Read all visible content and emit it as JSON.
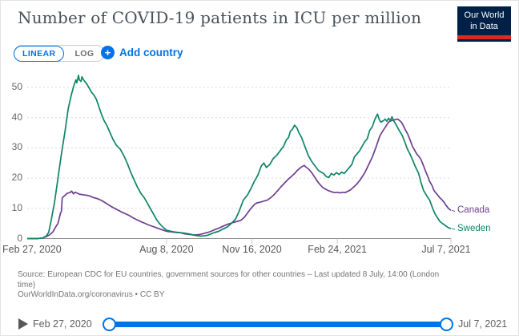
{
  "header": {
    "title": "Number of COVID-19 patients in ICU per million",
    "logo_line1": "Our World",
    "logo_line2": "in Data"
  },
  "controls": {
    "linear_label": "LINEAR",
    "log_label": "LOG",
    "plus_icon": "+",
    "add_country_label": "Add country"
  },
  "colors": {
    "accent_blue": "#0073e6",
    "logo_navy": "#002147",
    "logo_red": "#dc2a20",
    "sweden_green": "#0e8465",
    "canada_purple": "#6d3e91",
    "grid": "#dadada",
    "axis": "#8a8a8a"
  },
  "chart_data": {
    "type": "line",
    "title": "Number of COVID-19 patients in ICU per million",
    "x_axis": {
      "start_date": "2020-02-27",
      "end_date": "2021-07-07",
      "unit": "days_since_start",
      "ticks": [
        {
          "day": 0,
          "label": "Feb 27, 2020"
        },
        {
          "day": 163,
          "label": "Aug 8, 2020"
        },
        {
          "day": 263,
          "label": "Nov 16, 2020"
        },
        {
          "day": 363,
          "label": "Feb 24, 2021"
        },
        {
          "day": 496,
          "label": "Jul 7, 2021"
        }
      ]
    },
    "y_axis": {
      "ticks": [
        0,
        10,
        20,
        30,
        40,
        50
      ],
      "range": [
        0,
        55
      ],
      "gridlines": "dashed"
    },
    "legend_position": "right-of-line-end",
    "series": [
      {
        "name": "Canada",
        "color": "#6d3e91",
        "points": [
          [
            0,
            0
          ],
          [
            12,
            0
          ],
          [
            18,
            0.2
          ],
          [
            22,
            0.6
          ],
          [
            26,
            1.2
          ],
          [
            30,
            2.2
          ],
          [
            33,
            3.7
          ],
          [
            36,
            5
          ],
          [
            39,
            8.5
          ],
          [
            40,
            9
          ],
          [
            41,
            13.5
          ],
          [
            43,
            14
          ],
          [
            45,
            14.5
          ],
          [
            47,
            15
          ],
          [
            50,
            15.2
          ],
          [
            52,
            15.7
          ],
          [
            54,
            14.8
          ],
          [
            56,
            15.3
          ],
          [
            58,
            15.1
          ],
          [
            61,
            14.7
          ],
          [
            65,
            14.5
          ],
          [
            70,
            14.3
          ],
          [
            74,
            14
          ],
          [
            78,
            13.5
          ],
          [
            82,
            13.2
          ],
          [
            87,
            12.6
          ],
          [
            91,
            11.9
          ],
          [
            95,
            11.2
          ],
          [
            99,
            10.5
          ],
          [
            103,
            9.9
          ],
          [
            107,
            9.3
          ],
          [
            111,
            8.7
          ],
          [
            115,
            8.2
          ],
          [
            119,
            7.7
          ],
          [
            123,
            7
          ],
          [
            127,
            6.4
          ],
          [
            131,
            5.9
          ],
          [
            134,
            5.5
          ],
          [
            138,
            5
          ],
          [
            142,
            4.5
          ],
          [
            146,
            4.1
          ],
          [
            150,
            3.7
          ],
          [
            154,
            3.3
          ],
          [
            158,
            2.9
          ],
          [
            162,
            2.5
          ],
          [
            165,
            2.3
          ],
          [
            169,
            2.2
          ],
          [
            172,
            2.1
          ],
          [
            176,
            2
          ],
          [
            180,
            1.9
          ],
          [
            184,
            1.6
          ],
          [
            188,
            1.4
          ],
          [
            192,
            1.3
          ],
          [
            196,
            1.2
          ],
          [
            200,
            1.3
          ],
          [
            203,
            1.4
          ],
          [
            207,
            1.7
          ],
          [
            211,
            2
          ],
          [
            215,
            2.4
          ],
          [
            219,
            2.9
          ],
          [
            223,
            3.3
          ],
          [
            227,
            3.8
          ],
          [
            231,
            4.3
          ],
          [
            234,
            4.7
          ],
          [
            238,
            5
          ],
          [
            241,
            5.3
          ],
          [
            246,
            5.7
          ],
          [
            250,
            6
          ],
          [
            254,
            7
          ],
          [
            258,
            8.5
          ],
          [
            262,
            10
          ],
          [
            266,
            11.3
          ],
          [
            269,
            11.8
          ],
          [
            272,
            12
          ],
          [
            276,
            12.3
          ],
          [
            281,
            12.7
          ],
          [
            285,
            13.5
          ],
          [
            289,
            14.5
          ],
          [
            293,
            15.8
          ],
          [
            297,
            17.1
          ],
          [
            301,
            18.3
          ],
          [
            305,
            19.5
          ],
          [
            309,
            20.5
          ],
          [
            313,
            21.5
          ],
          [
            316,
            22.5
          ],
          [
            318,
            23
          ],
          [
            321,
            23.7
          ],
          [
            324,
            24.2
          ],
          [
            327,
            23.5
          ],
          [
            330,
            22.8
          ],
          [
            333,
            21.8
          ],
          [
            336,
            20.5
          ],
          [
            340,
            18.8
          ],
          [
            343,
            17.8
          ],
          [
            346,
            16.9
          ],
          [
            350,
            16.2
          ],
          [
            353,
            15.8
          ],
          [
            357,
            15.4
          ],
          [
            360,
            15.2
          ],
          [
            363,
            15.3
          ],
          [
            366,
            15.1
          ],
          [
            369,
            15.3
          ],
          [
            372,
            15.2
          ],
          [
            375,
            15.6
          ],
          [
            378,
            16
          ],
          [
            382,
            17
          ],
          [
            386,
            18.1
          ],
          [
            390,
            19.5
          ],
          [
            395,
            21.7
          ],
          [
            399,
            24
          ],
          [
            404,
            27
          ],
          [
            408,
            30
          ],
          [
            413,
            34.1
          ],
          [
            416,
            35.5
          ],
          [
            419,
            36.8
          ],
          [
            423,
            38.5
          ],
          [
            426,
            39
          ],
          [
            430,
            39.3
          ],
          [
            434,
            39.5
          ],
          [
            436,
            39
          ],
          [
            438,
            38.5
          ],
          [
            440,
            37.5
          ],
          [
            442,
            36.3
          ],
          [
            445,
            34.8
          ],
          [
            447,
            33.5
          ],
          [
            449,
            32
          ],
          [
            451,
            30.5
          ],
          [
            454,
            29
          ],
          [
            456,
            28
          ],
          [
            459,
            27
          ],
          [
            461,
            26.1
          ],
          [
            464,
            24
          ],
          [
            466,
            22.5
          ],
          [
            469,
            20.5
          ],
          [
            471,
            19
          ],
          [
            474,
            17.5
          ],
          [
            476,
            16
          ],
          [
            478,
            15.2
          ],
          [
            480,
            14.6
          ],
          [
            483,
            13.5
          ],
          [
            485,
            13
          ],
          [
            488,
            12
          ],
          [
            490,
            11.1
          ],
          [
            493,
            10
          ],
          [
            496,
            9.3
          ]
        ]
      },
      {
        "name": "Sweden",
        "color": "#0e8465",
        "points": [
          [
            0,
            0
          ],
          [
            12,
            0
          ],
          [
            18,
            0.2
          ],
          [
            22,
            0.8
          ],
          [
            25,
            2
          ],
          [
            28,
            6
          ],
          [
            32,
            12
          ],
          [
            36,
            20
          ],
          [
            40,
            28
          ],
          [
            44,
            35
          ],
          [
            48,
            43
          ],
          [
            52,
            48
          ],
          [
            55,
            51
          ],
          [
            57,
            52.5
          ],
          [
            58,
            51.5
          ],
          [
            60,
            54
          ],
          [
            61,
            52.5
          ],
          [
            63,
            52
          ],
          [
            64,
            53.5
          ],
          [
            66,
            52.5
          ],
          [
            70,
            51
          ],
          [
            75,
            48.5
          ],
          [
            78,
            47.5
          ],
          [
            81,
            46
          ],
          [
            84,
            43.5
          ],
          [
            87,
            41
          ],
          [
            90,
            39
          ],
          [
            93,
            37.5
          ],
          [
            97,
            35
          ],
          [
            100,
            33
          ],
          [
            104,
            31
          ],
          [
            109,
            29.5
          ],
          [
            113,
            27.5
          ],
          [
            117,
            25
          ],
          [
            121,
            22
          ],
          [
            125,
            19.5
          ],
          [
            129,
            17
          ],
          [
            133,
            15
          ],
          [
            137,
            13.5
          ],
          [
            141,
            11.5
          ],
          [
            145,
            9.5
          ],
          [
            149,
            7.5
          ],
          [
            152,
            6
          ],
          [
            156,
            4.6
          ],
          [
            160,
            3.5
          ],
          [
            163,
            2.8
          ],
          [
            167,
            2.5
          ],
          [
            172,
            2.2
          ],
          [
            178,
            2
          ],
          [
            184,
            1.8
          ],
          [
            190,
            1.5
          ],
          [
            196,
            1.1
          ],
          [
            203,
            0.8
          ],
          [
            210,
            1
          ],
          [
            215,
            1.5
          ],
          [
            219,
            2
          ],
          [
            224,
            2.4
          ],
          [
            228,
            3
          ],
          [
            234,
            3.8
          ],
          [
            239,
            5
          ],
          [
            244,
            6.5
          ],
          [
            248,
            9
          ],
          [
            253,
            12.7
          ],
          [
            258,
            14.5
          ],
          [
            262,
            16.6
          ],
          [
            266,
            19
          ],
          [
            270,
            21
          ],
          [
            274,
            24
          ],
          [
            277,
            25
          ],
          [
            280,
            23.5
          ],
          [
            284,
            24.5
          ],
          [
            288,
            26.5
          ],
          [
            292,
            27.5
          ],
          [
            296,
            29
          ],
          [
            300,
            30.5
          ],
          [
            303,
            32.5
          ],
          [
            306,
            33.5
          ],
          [
            308,
            35.5
          ],
          [
            310,
            36
          ],
          [
            313,
            37.5
          ],
          [
            316,
            36.5
          ],
          [
            318,
            35
          ],
          [
            321,
            33.5
          ],
          [
            325,
            30.5
          ],
          [
            329,
            27.5
          ],
          [
            333,
            25.5
          ],
          [
            337,
            24
          ],
          [
            341,
            22.5
          ],
          [
            344,
            22
          ],
          [
            347,
            21.5
          ],
          [
            350,
            20.5
          ],
          [
            353,
            20.2
          ],
          [
            356,
            21.5
          ],
          [
            359,
            21
          ],
          [
            362,
            21.8
          ],
          [
            365,
            21.2
          ],
          [
            368,
            22
          ],
          [
            371,
            21.5
          ],
          [
            374,
            22.5
          ],
          [
            377,
            23.5
          ],
          [
            380,
            24.5
          ],
          [
            383,
            27
          ],
          [
            386,
            28
          ],
          [
            389,
            29
          ],
          [
            392,
            30.5
          ],
          [
            395,
            32
          ],
          [
            398,
            33
          ],
          [
            401,
            35.8
          ],
          [
            404,
            37
          ],
          [
            407,
            39.5
          ],
          [
            410,
            41.2
          ],
          [
            412,
            39.5
          ],
          [
            414,
            38.5
          ],
          [
            417,
            39
          ],
          [
            419,
            39.5
          ],
          [
            421,
            38.8
          ],
          [
            423,
            39.8
          ],
          [
            425,
            39
          ],
          [
            427,
            40.3
          ],
          [
            429,
            39
          ],
          [
            432,
            37.6
          ],
          [
            435,
            36
          ],
          [
            439,
            34.1
          ],
          [
            442,
            32
          ],
          [
            445,
            29.6
          ],
          [
            448,
            28
          ],
          [
            451,
            26.1
          ],
          [
            454,
            24
          ],
          [
            458,
            21.7
          ],
          [
            461,
            18.5
          ],
          [
            464,
            15.9
          ],
          [
            468,
            14
          ],
          [
            471,
            12.8
          ],
          [
            474,
            10.5
          ],
          [
            477,
            8.4
          ],
          [
            480,
            7
          ],
          [
            483,
            5.7
          ],
          [
            486,
            5
          ],
          [
            490,
            4.2
          ],
          [
            493,
            3.6
          ],
          [
            496,
            3.3
          ]
        ]
      }
    ]
  },
  "footer": {
    "source_lines": [
      "Source: European CDC for EU countries, government sources for other countries – Last updated 8 July, 14:00 (London",
      "time)",
      "OurWorldInData.org/coronavirus • CC BY"
    ]
  },
  "timeline": {
    "start_label": "Feb 27, 2020",
    "end_label": "Jul 7, 2021"
  }
}
